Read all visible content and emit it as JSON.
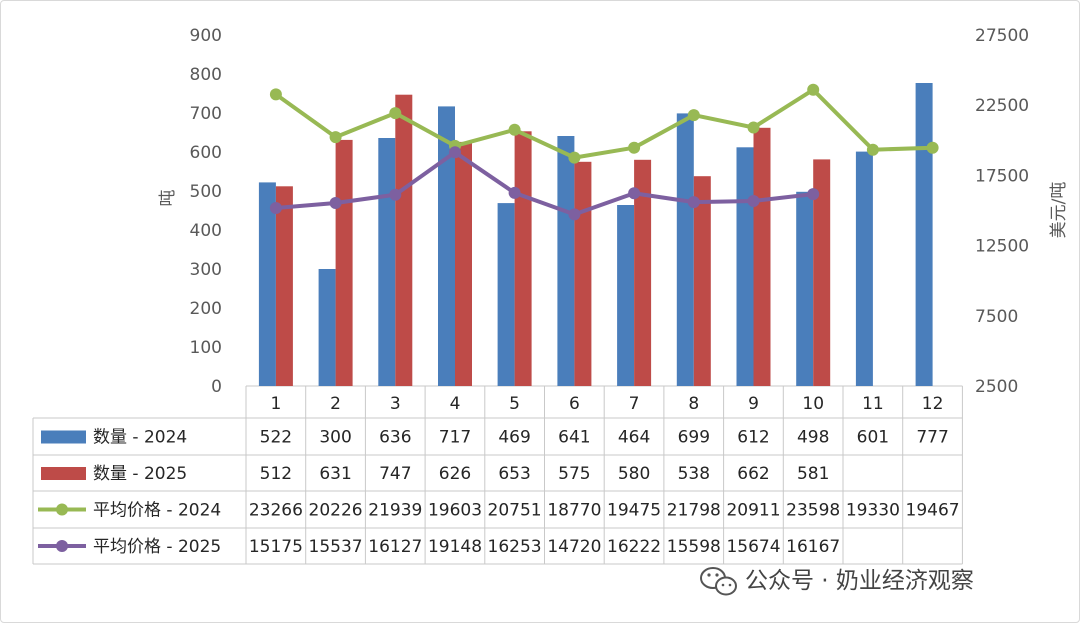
{
  "chart_data": {
    "type": "bar+line",
    "categories": [
      "1",
      "2",
      "3",
      "4",
      "5",
      "6",
      "7",
      "8",
      "9",
      "10",
      "11",
      "12"
    ],
    "ylabel": "吨",
    "y2label": "美元/吨",
    "ylim": [
      0,
      900
    ],
    "y_ticks": [
      "900",
      "800",
      "700",
      "600",
      "500",
      "400",
      "300",
      "200",
      "100",
      "0"
    ],
    "y2lim": [
      2500,
      27500
    ],
    "y2_ticks": [
      "27500",
      "22500",
      "17500",
      "12500",
      "7500",
      "2500"
    ],
    "grid": false,
    "legend_placement": "data-table-left",
    "series": [
      {
        "name": "数量 - 2024",
        "kind": "bar",
        "axis": "left",
        "color": "#4a7ebb",
        "values": [
          522,
          300,
          636,
          717,
          469,
          641,
          464,
          699,
          612,
          498,
          601,
          777
        ]
      },
      {
        "name": "数量 - 2025",
        "kind": "bar",
        "axis": "left",
        "color": "#be4b48",
        "values": [
          512,
          631,
          747,
          626,
          653,
          575,
          580,
          538,
          662,
          581,
          null,
          null
        ]
      },
      {
        "name": "平均价格 - 2024",
        "kind": "line",
        "axis": "right",
        "color": "#98b954",
        "values": [
          23266,
          20226,
          21939,
          19603,
          20751,
          18770,
          19475,
          21798,
          20911,
          23598,
          19330,
          19467
        ]
      },
      {
        "name": "平均价格 - 2025",
        "kind": "line",
        "axis": "right",
        "color": "#7d60a0",
        "values": [
          15175,
          15537,
          16127,
          19148,
          16253,
          14720,
          16222,
          15598,
          15674,
          16167,
          null,
          null
        ]
      }
    ]
  },
  "watermark": {
    "icon": "wechat-icon",
    "text": "公众号 · 奶业经济观察"
  }
}
